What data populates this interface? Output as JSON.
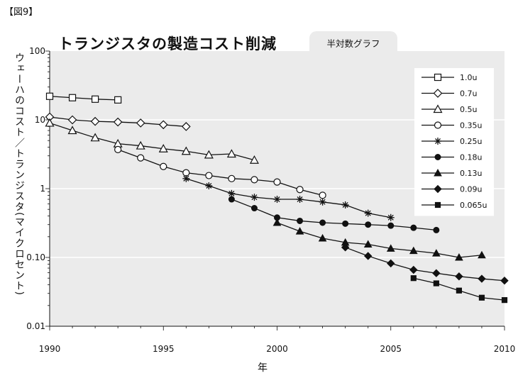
{
  "figure_label": "【図9】",
  "chart_data": {
    "type": "line",
    "title": "トランジスタの製造コスト削減",
    "subtitle": "半対数グラフ",
    "xlabel": "年",
    "ylabel": "ウェーハのコスト／トランジスタ(マイクロセント)",
    "xlim": [
      1990,
      2010
    ],
    "ylim": [
      0.01,
      100
    ],
    "yscale": "log",
    "x_ticks": [
      "1990",
      "1995",
      "2000",
      "2005",
      "2010"
    ],
    "y_ticks": [
      "0.01",
      "0.10",
      "1",
      "10",
      "100"
    ],
    "grid": "horizontal",
    "legend_position": "top-right",
    "series": [
      {
        "name": "1.0u",
        "marker": "square-open",
        "x": [
          1990,
          1991,
          1992,
          1993
        ],
        "y": [
          22,
          21,
          20,
          19.5
        ]
      },
      {
        "name": "0.7u",
        "marker": "diamond-open",
        "x": [
          1990,
          1991,
          1992,
          1993,
          1994,
          1995,
          1996
        ],
        "y": [
          11,
          10,
          9.5,
          9.3,
          9,
          8.5,
          8
        ]
      },
      {
        "name": "0.5u",
        "marker": "triangle-open",
        "x": [
          1990,
          1991,
          1992,
          1993,
          1994,
          1995,
          1996,
          1997,
          1998,
          1999
        ],
        "y": [
          9,
          7,
          5.5,
          4.5,
          4.2,
          3.8,
          3.5,
          3.1,
          3.2,
          2.6
        ]
      },
      {
        "name": "0.35u",
        "marker": "circle-open",
        "x": [
          1993,
          1994,
          1995,
          1996,
          1997,
          1998,
          1999,
          2000,
          2001,
          2002
        ],
        "y": [
          3.7,
          2.8,
          2.1,
          1.7,
          1.55,
          1.4,
          1.35,
          1.25,
          0.97,
          0.8
        ]
      },
      {
        "name": "0.25u",
        "marker": "asterisk",
        "x": [
          1996,
          1997,
          1998,
          1999,
          2000,
          2001,
          2002,
          2003,
          2004,
          2005
        ],
        "y": [
          1.4,
          1.1,
          0.85,
          0.75,
          0.7,
          0.7,
          0.64,
          0.58,
          0.44,
          0.38
        ]
      },
      {
        "name": "0.18u",
        "marker": "circle-filled",
        "x": [
          1998,
          1999,
          2000,
          2001,
          2002,
          2003,
          2004,
          2005,
          2006,
          2007
        ],
        "y": [
          0.7,
          0.52,
          0.38,
          0.34,
          0.32,
          0.31,
          0.3,
          0.29,
          0.27,
          0.25
        ]
      },
      {
        "name": "0.13u",
        "marker": "triangle-filled",
        "x": [
          2000,
          2001,
          2002,
          2003,
          2004,
          2005,
          2006,
          2007,
          2008,
          2009
        ],
        "y": [
          0.32,
          0.24,
          0.19,
          0.165,
          0.155,
          0.135,
          0.125,
          0.115,
          0.1,
          0.108
        ]
      },
      {
        "name": "0.09u",
        "marker": "diamond-filled",
        "x": [
          2003,
          2004,
          2005,
          2006,
          2007,
          2008,
          2009,
          2010
        ],
        "y": [
          0.14,
          0.105,
          0.082,
          0.066,
          0.059,
          0.053,
          0.049,
          0.046
        ]
      },
      {
        "name": "0.065u",
        "marker": "square-filled",
        "x": [
          2006,
          2007,
          2008,
          2009,
          2010
        ],
        "y": [
          0.05,
          0.042,
          0.033,
          0.026,
          0.024
        ]
      }
    ]
  }
}
